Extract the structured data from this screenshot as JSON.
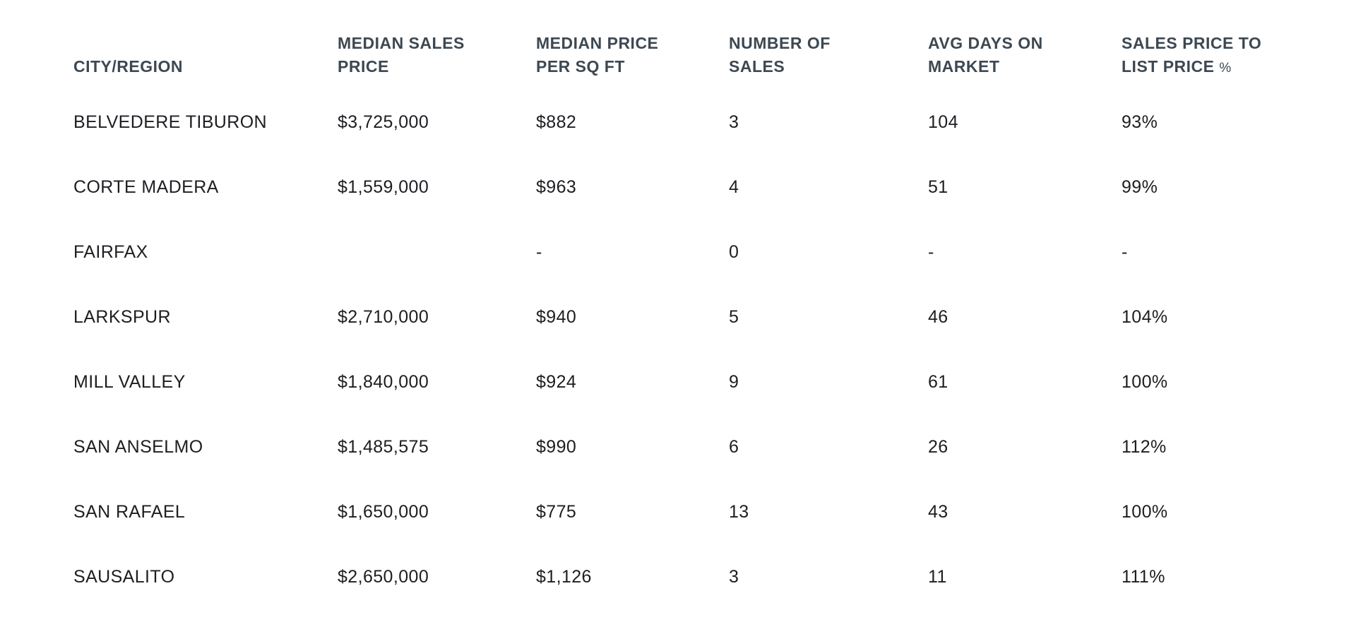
{
  "colors": {
    "background": "#ffffff",
    "header_text": "#3d4852",
    "body_text": "#1c1e21"
  },
  "table": {
    "columns": [
      {
        "id": "city",
        "label": "CITY/REGION"
      },
      {
        "id": "median_sales_price",
        "label": "MEDIAN SALES PRICE"
      },
      {
        "id": "median_price_per_sqft",
        "label": "MEDIAN PRICE PER SQ FT"
      },
      {
        "id": "number_of_sales",
        "label": "NUMBER OF SALES"
      },
      {
        "id": "avg_days_on_market",
        "label": "AVG DAYS ON MARKET"
      },
      {
        "id": "sales_price_to_list_pct",
        "label": "SALES PRICE TO LIST PRICE",
        "label_suffix": "%"
      }
    ],
    "rows": [
      {
        "city": "BELVEDERE TIBURON",
        "median_sales_price": "$3,725,000",
        "median_price_per_sqft": "$882",
        "number_of_sales": "3",
        "avg_days_on_market": "104",
        "sales_price_to_list_pct": "93%"
      },
      {
        "city": "CORTE MADERA",
        "median_sales_price": "$1,559,000",
        "median_price_per_sqft": "$963",
        "number_of_sales": "4",
        "avg_days_on_market": "51",
        "sales_price_to_list_pct": "99%"
      },
      {
        "city": "FAIRFAX",
        "median_sales_price": "",
        "median_price_per_sqft": "-",
        "number_of_sales": "0",
        "avg_days_on_market": "-",
        "sales_price_to_list_pct": "-"
      },
      {
        "city": "LARKSPUR",
        "median_sales_price": "$2,710,000",
        "median_price_per_sqft": "$940",
        "number_of_sales": "5",
        "avg_days_on_market": "46",
        "sales_price_to_list_pct": "104%"
      },
      {
        "city": "MILL VALLEY",
        "median_sales_price": "$1,840,000",
        "median_price_per_sqft": "$924",
        "number_of_sales": "9",
        "avg_days_on_market": "61",
        "sales_price_to_list_pct": "100%"
      },
      {
        "city": "SAN ANSELMO",
        "median_sales_price": "$1,485,575",
        "median_price_per_sqft": "$990",
        "number_of_sales": "6",
        "avg_days_on_market": "26",
        "sales_price_to_list_pct": "112%"
      },
      {
        "city": "SAN RAFAEL",
        "median_sales_price": "$1,650,000",
        "median_price_per_sqft": "$775",
        "number_of_sales": "13",
        "avg_days_on_market": "43",
        "sales_price_to_list_pct": "100%"
      },
      {
        "city": "SAUSALITO",
        "median_sales_price": "$2,650,000",
        "median_price_per_sqft": "$1,126",
        "number_of_sales": "3",
        "avg_days_on_market": "11",
        "sales_price_to_list_pct": "111%"
      }
    ]
  }
}
